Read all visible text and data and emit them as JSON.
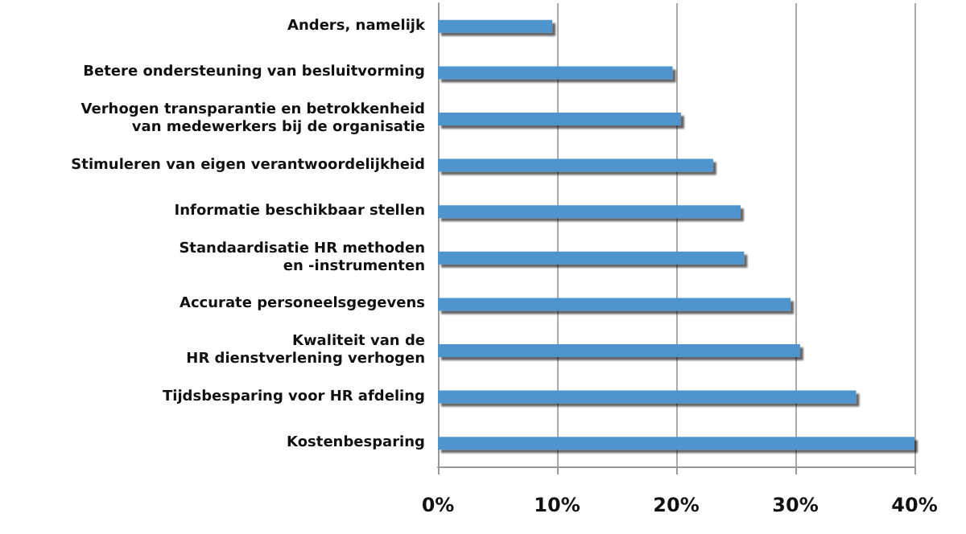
{
  "chart_data": {
    "type": "bar",
    "orientation": "horizontal",
    "categories": [
      "Anders, namelijk",
      "Betere ondersteuning van besluitvorming",
      "Verhogen transparantie en betrokkenheid\nvan medewerkers bij de organisatie",
      "Stimuleren van eigen verantwoordelijkheid",
      "Informatie beschikbaar stellen",
      "Standaardisatie HR methoden\nen -instrumenten",
      "Accurate personeelsgegevens",
      "Kwaliteit van de\nHR dienstverlening verhogen",
      "Tijdsbesparing voor HR afdeling",
      "Kostenbesparing"
    ],
    "values": [
      9.6,
      19.7,
      20.4,
      23.1,
      25.4,
      25.7,
      29.6,
      30.4,
      35.1,
      40
    ],
    "color": "#4f94cd",
    "xlim": [
      0,
      40
    ],
    "xticks": [
      {
        "value": 0,
        "label": "0%"
      },
      {
        "value": 10,
        "label": "10%"
      },
      {
        "value": 20,
        "label": "20%"
      },
      {
        "value": 30,
        "label": "30%"
      },
      {
        "value": 40,
        "label": "40%"
      }
    ],
    "grid": "x"
  }
}
